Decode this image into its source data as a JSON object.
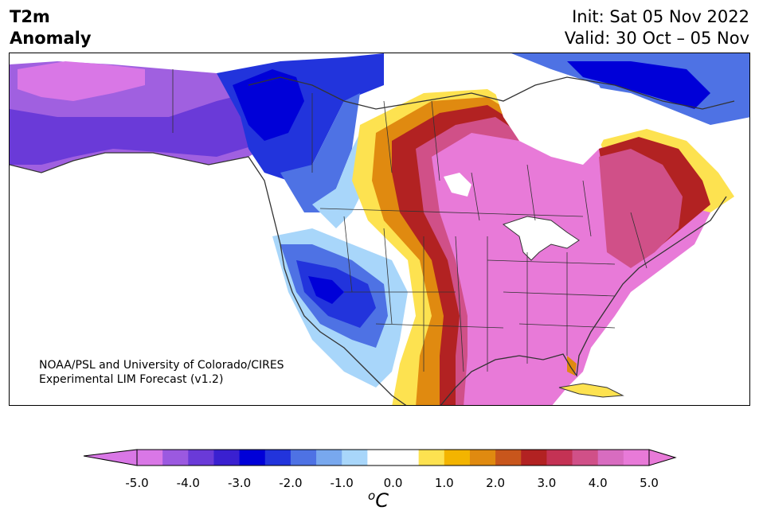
{
  "header": {
    "variable": "T2m",
    "kind": "Anomaly",
    "init": "Init: Sat 05 Nov 2022",
    "valid": "Valid: 30 Oct – 05 Nov"
  },
  "credit": {
    "line1": "NOAA/PSL and University of Colorado/CIRES",
    "line2": "Experimental LIM Forecast (v1.2)"
  },
  "colorbar": {
    "ticks": [
      "-5.0",
      "-4.0",
      "-3.0",
      "-2.0",
      "-1.0",
      "0.0",
      "1.0",
      "2.0",
      "3.0",
      "4.0",
      "5.0"
    ],
    "unit_sup": "o",
    "unit": "C",
    "colors": [
      "#d977e6",
      "#9b59e0",
      "#6a3ad8",
      "#3a20d0",
      "#0000d8",
      "#2234dc",
      "#4e72e4",
      "#78a8ee",
      "#a8d6fa",
      "#ffffff",
      "#ffffff",
      "#fde250",
      "#f3b400",
      "#e08a10",
      "#c8561c",
      "#b22222",
      "#c43254",
      "#d05088",
      "#d86cc0",
      "#e87ad8"
    ],
    "under_color": "#d977e6",
    "over_color": "#e87ad8"
  }
}
